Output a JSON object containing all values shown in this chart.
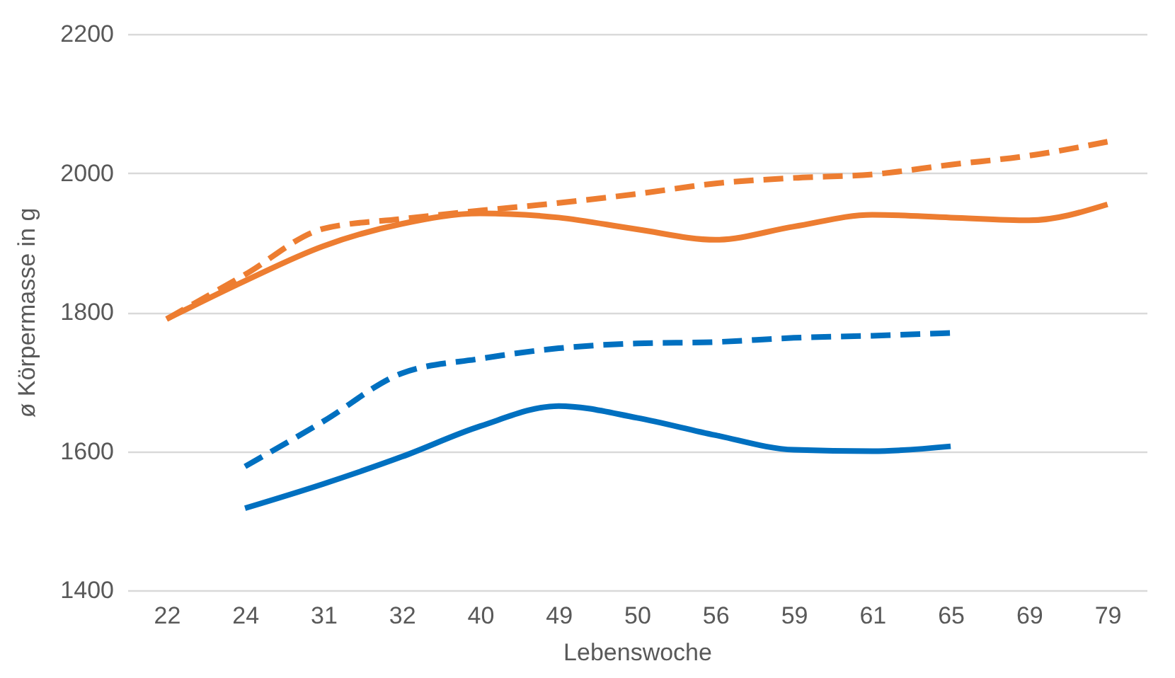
{
  "chart_data": {
    "type": "line",
    "xlabel": "Lebenswoche",
    "ylabel": "ø Körpermasse in g",
    "categories": [
      "22",
      "24",
      "31",
      "32",
      "40",
      "49",
      "50",
      "56",
      "59",
      "61",
      "65",
      "69",
      "79"
    ],
    "series": [
      {
        "color": "#ed7d31",
        "line_style": "solid",
        "values": [
          1790,
          1845,
          1895,
          1927,
          1942,
          1936,
          1919,
          1904,
          1923,
          1940,
          1936,
          1932,
          1955
        ]
      },
      {
        "color": "#ed7d31",
        "line_style": "dashed",
        "values": [
          1790,
          1854,
          1920,
          1934,
          1946,
          1957,
          1970,
          1985,
          1993,
          1998,
          2012,
          2025,
          2045
        ]
      },
      {
        "color": "#0070c0",
        "line_style": "solid",
        "values": [
          null,
          1518,
          1553,
          1592,
          1636,
          1665,
          1648,
          1623,
          1602,
          1600,
          1607,
          null,
          null
        ]
      },
      {
        "color": "#0070c0",
        "line_style": "dashed",
        "values": [
          null,
          1578,
          1643,
          1712,
          1733,
          1748,
          1755,
          1757,
          1763,
          1766,
          1770,
          null,
          null
        ]
      }
    ],
    "ylim": [
      1400,
      2200
    ],
    "yticks": [
      1400,
      1600,
      1800,
      2000,
      2200
    ],
    "grid": "y",
    "legend": false,
    "marker": "none"
  }
}
